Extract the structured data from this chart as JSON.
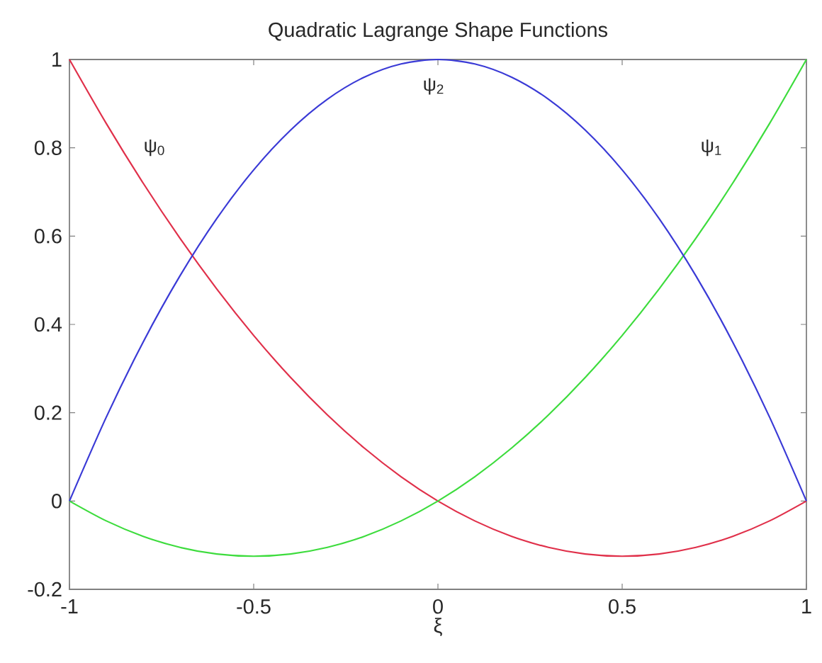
{
  "chart_data": {
    "type": "line",
    "title": "Quadratic Lagrange Shape Functions",
    "xlabel": "ξ",
    "x": [
      -1,
      -0.9,
      -0.8,
      -0.7,
      -0.6,
      -0.5,
      -0.4,
      -0.3,
      -0.2,
      -0.1,
      0,
      0.1,
      0.2,
      0.3,
      0.4,
      0.5,
      0.6,
      0.7,
      0.8,
      0.9,
      1
    ],
    "series": [
      {
        "name": "ψ$_{0}$",
        "color": "#e0304a",
        "values": [
          1,
          0.855,
          0.72,
          0.595,
          0.48,
          0.375,
          0.28,
          0.195,
          0.12,
          0.055,
          0,
          -0.045,
          -0.08,
          -0.105,
          -0.12,
          -0.125,
          -0.12,
          -0.105,
          -0.08,
          -0.045,
          0
        ]
      },
      {
        "name": "ψ$_{1}$",
        "color": "#3ddc3d",
        "values": [
          0,
          -0.045,
          -0.08,
          -0.105,
          -0.12,
          -0.125,
          -0.12,
          -0.105,
          -0.08,
          -0.045,
          0,
          0.055,
          0.12,
          0.195,
          0.28,
          0.375,
          0.48,
          0.595,
          0.72,
          0.855,
          1
        ]
      },
      {
        "name": "ψ$_{2}$",
        "color": "#3a3ad6",
        "values": [
          0,
          0.19,
          0.36,
          0.51,
          0.64,
          0.75,
          0.84,
          0.91,
          0.96,
          0.99,
          1,
          0.99,
          0.96,
          0.91,
          0.84,
          0.75,
          0.64,
          0.51,
          0.36,
          0.19,
          0
        ]
      }
    ],
    "xlim": [
      -1,
      1
    ],
    "xticks": [
      -1,
      -0.5,
      0,
      0.5,
      1
    ],
    "ylim": [
      -0.2,
      1
    ],
    "yticks": [
      -0.2,
      0,
      0.2,
      0.4,
      0.6,
      0.8,
      1
    ],
    "marker": "none",
    "line_style": "solid"
  }
}
